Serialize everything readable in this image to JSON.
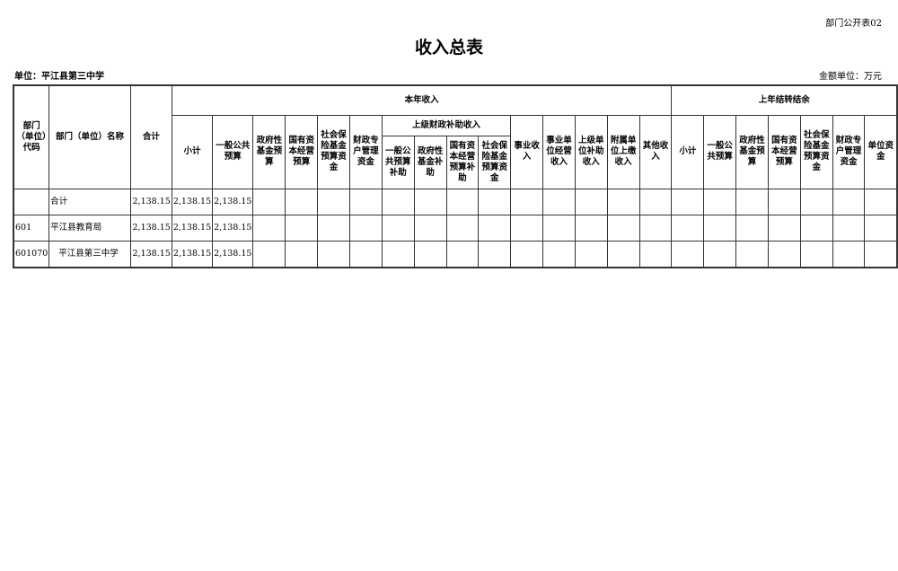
{
  "form_code": "部门公开表02",
  "title": "收入总表",
  "unit_label": "单位：平江县第三中学",
  "money_unit": "金额单位：万元",
  "headers": {
    "code": "部门（单位）代码",
    "name": "部门（单位）名称",
    "total": "合计",
    "current_year": "本年收入",
    "current_cols": [
      "小计",
      "一般公共预算",
      "政府性基金预算",
      "国有资本经营预算",
      "社会保险基金预算资金",
      "财政专户管理资金"
    ],
    "superior_group": "上级财政补助收入",
    "superior_cols": [
      "一般公共预算补助",
      "政府性基金补助",
      "国有资本经营预算补助",
      "社会保险基金预算资金"
    ],
    "other_cols": [
      "事业收入",
      "事业单位经营收入",
      "上级单位补助收入",
      "附属单位上缴收入",
      "其他收入"
    ],
    "last_year": "上年结转结余",
    "last_cols": [
      "小计",
      "一般公共预算",
      "政府性基金预算",
      "国有资本经营预算",
      "社会保险基金预算资金",
      "财政专户管理资金",
      "单位资金"
    ]
  },
  "rows": [
    {
      "code": "",
      "name": "合计",
      "total": "2,138.15",
      "subtotal": "2,138.15",
      "general": "2,138.15"
    },
    {
      "code": "601",
      "name": "平江县教育局",
      "total": "2,138.15",
      "subtotal": "2,138.15",
      "general": "2,138.15"
    },
    {
      "code": "601070",
      "name": "平江县第三中学",
      "total": "2,138.15",
      "subtotal": "2,138.15",
      "general": "2,138.15"
    }
  ]
}
